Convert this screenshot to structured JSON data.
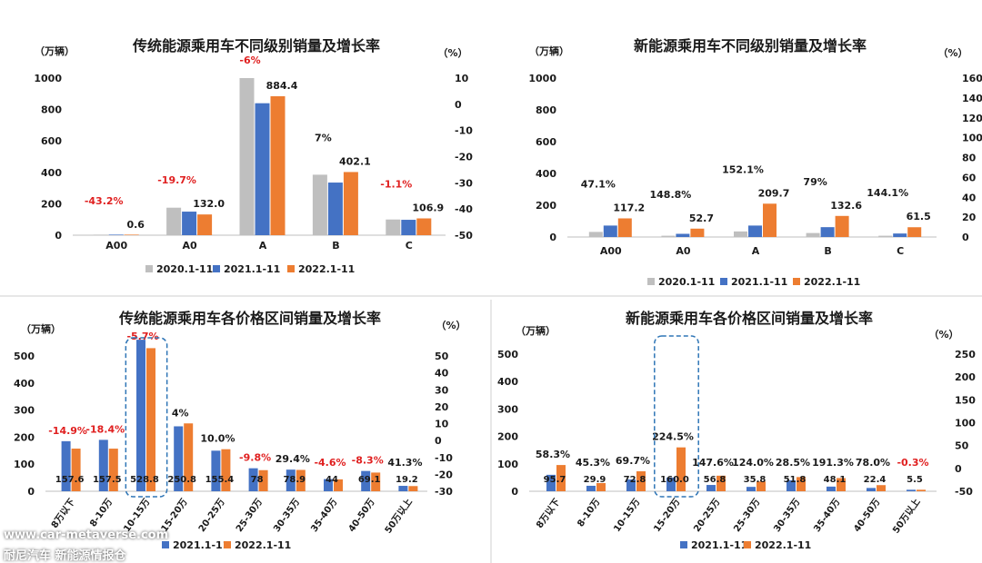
{
  "colors": {
    "c2020": "#bfbfbf",
    "c2021": "#4472c4",
    "c2022": "#ed7d31",
    "growth_pos": "#1a1a1a",
    "growth_neg": "#e02020",
    "divider": "#cfcfcf"
  },
  "legend": {
    "s2020": "2020.1-11",
    "s2021": "2021.1-11",
    "s2022": "2022.1-11"
  },
  "watermark": {
    "site": "www.car-metaverse.com",
    "caption": "耐尼汽车 新能源情报仓"
  },
  "chart_data": [
    {
      "type": "bar",
      "title": "传统能源乘用车不同级别销量及增长率",
      "y_unit": "（万辆）",
      "y2_unit": "（%）",
      "ylim": [
        0,
        1000
      ],
      "yticks": [
        "0",
        "200",
        "400",
        "600",
        "800",
        "1000"
      ],
      "y2ticks": [
        "10",
        "0",
        "-10",
        "-20",
        "-30",
        "-40",
        "-50"
      ],
      "categories": [
        "A00",
        "A0",
        "A",
        "B",
        "C"
      ],
      "series": [
        {
          "name": "2020.1-11",
          "values": [
            1,
            175,
            1000,
            385,
            100
          ]
        },
        {
          "name": "2021.1-11",
          "values": [
            1,
            150,
            840,
            335,
            98
          ]
        },
        {
          "name": "2022.1-11",
          "values": [
            0.6,
            132.0,
            884.4,
            402.1,
            106.9
          ]
        }
      ],
      "value_labels": [
        "0.6",
        "132.0",
        "884.4",
        "402.1",
        "106.9"
      ],
      "growth_labels": [
        "-43.2%",
        "-19.7%",
        "-6%",
        "7%",
        "-1.1%"
      ],
      "growth_negative": [
        true,
        true,
        true,
        false,
        true
      ]
    },
    {
      "type": "bar",
      "title": "新能源乘用车不同级别销量及增长率",
      "y_unit": "（万辆）",
      "y2_unit": "（%）",
      "ylim": [
        0,
        1000
      ],
      "yticks": [
        "0",
        "200",
        "400",
        "600",
        "800",
        "1000"
      ],
      "y2ticks": [
        "0",
        "20",
        "40",
        "60",
        "80",
        "100",
        "120",
        "140",
        "160"
      ],
      "categories": [
        "A00",
        "A0",
        "A",
        "B",
        "C"
      ],
      "series": [
        {
          "name": "2020.1-11",
          "values": [
            32,
            8,
            35,
            25,
            8
          ]
        },
        {
          "name": "2021.1-11",
          "values": [
            72,
            20,
            72,
            62,
            22
          ]
        },
        {
          "name": "2022.1-11",
          "values": [
            117.2,
            52.7,
            209.7,
            132.6,
            61.5
          ]
        }
      ],
      "value_labels": [
        "117.2",
        "52.7",
        "209.7",
        "132.6",
        "61.5"
      ],
      "growth_labels": [
        "47.1%",
        "148.8%",
        "152.1%",
        "79%",
        "144.1%"
      ],
      "growth_negative": [
        false,
        false,
        false,
        false,
        false
      ]
    },
    {
      "type": "bar",
      "title": "传统能源乘用车各价格区间销量及增长率",
      "y_unit": "（万辆）",
      "y2_unit": "（%）",
      "ylim": [
        0,
        500
      ],
      "yticks": [
        "0",
        "100",
        "200",
        "300",
        "400",
        "500"
      ],
      "y2ticks": [
        "50",
        "40",
        "30",
        "20",
        "10",
        "0",
        "-10",
        "-20",
        "-30"
      ],
      "categories": [
        "8万以下",
        "8-10万",
        "10-15万",
        "15-20万",
        "20-25万",
        "25-30万",
        "30-35万",
        "35-40万",
        "40-50万",
        "50万以上"
      ],
      "series": [
        {
          "name": "2021.1-11",
          "values": [
            185,
            190,
            560,
            240,
            150,
            85,
            80,
            45,
            75,
            20
          ]
        },
        {
          "name": "2022.1-11",
          "values": [
            157.6,
            157.5,
            528.8,
            250.8,
            155.4,
            78,
            78.9,
            44,
            69.1,
            19.2
          ]
        }
      ],
      "value_labels": [
        "157.6",
        "157.5",
        "528.8",
        "250.8",
        "155.4",
        "78",
        "78.9",
        "44",
        "69.1",
        "19.2"
      ],
      "growth_labels": [
        "-14.9%",
        "-18.4%",
        "-5.7%",
        "4%",
        "10.0%",
        "-9.8%",
        "29.4%",
        "-4.6%",
        "-8.3%",
        "41.3%"
      ],
      "growth_negative": [
        true,
        true,
        true,
        false,
        false,
        true,
        false,
        true,
        true,
        false
      ],
      "legend_labels": [
        "2021.1-11",
        "2022.1-11"
      ],
      "highlight": "10-15万"
    },
    {
      "type": "bar",
      "title": "新能源乘用车各价格区间销量及增长率",
      "y_unit": "（万辆）",
      "y2_unit": "（%）",
      "ylim": [
        0,
        500
      ],
      "yticks": [
        "0",
        "100",
        "200",
        "300",
        "400",
        "500"
      ],
      "y2ticks": [
        "250",
        "200",
        "150",
        "100",
        "50",
        "0",
        "-50"
      ],
      "categories": [
        "8万以下",
        "8-10万",
        "10-15万",
        "15-20万",
        "20-25万",
        "25-30万",
        "30-35万",
        "35-40万",
        "40-50万",
        "50万以上"
      ],
      "series": [
        {
          "name": "2021.1-11",
          "values": [
            60,
            20,
            43,
            50,
            23,
            16,
            40,
            17,
            12,
            5.5
          ]
        },
        {
          "name": "2022.1-11",
          "values": [
            95.7,
            29.9,
            72.8,
            160.0,
            56.8,
            35.8,
            51.8,
            48.1,
            22.4,
            5.5
          ]
        }
      ],
      "value_labels": [
        "95.7",
        "29.9",
        "72.8",
        "160.0",
        "56.8",
        "35.8",
        "51.8",
        "48.1",
        "22.4",
        "5.5"
      ],
      "growth_labels": [
        "58.3%",
        "45.3%",
        "69.7%",
        "224.5%",
        "147.6%",
        "124.0%",
        "28.5%",
        "191.3%",
        "78.0%",
        "-0.3%"
      ],
      "growth_negative": [
        false,
        false,
        false,
        false,
        false,
        false,
        false,
        false,
        false,
        true
      ],
      "legend_labels": [
        "2021.1-11",
        "2022.1-11"
      ],
      "highlight": "15-20万"
    }
  ]
}
